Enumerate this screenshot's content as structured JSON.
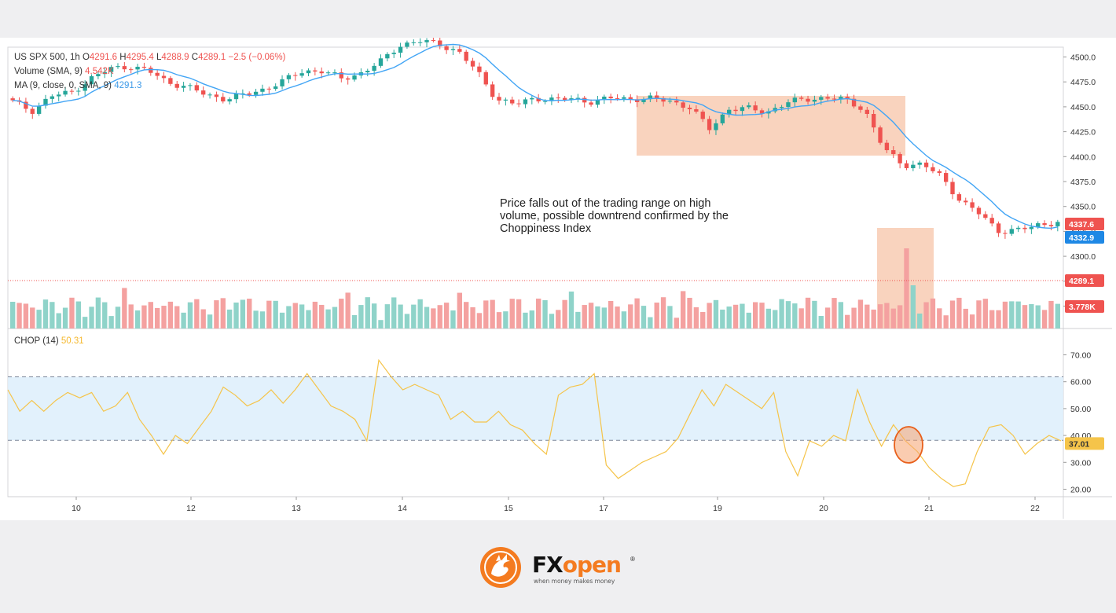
{
  "header": {
    "symbol_line": {
      "symbol": "US SPX 500, 1h",
      "o_label": "O",
      "o": "4291.6",
      "h_label": "H",
      "h": "4295.4",
      "l_label": "L",
      "l": "4288.9",
      "c_label": "C",
      "c": "4289.1",
      "chg": "−2.5 (−0.06%)"
    },
    "volume_line": {
      "label": "Volume (SMA, 9)",
      "value": "4.542K"
    },
    "ma_line": {
      "label": "MA (9, close, 0, SMA, 9)",
      "value": "4291.3"
    },
    "chop_line": {
      "label": "CHOP (14)",
      "value": "50.31"
    }
  },
  "annotation": "Price falls out of the trading range on high volume, possible downtrend confirmed by the Choppiness Index",
  "colors": {
    "up": "#26a69a",
    "down": "#ef5350",
    "ma": "#42a5f5",
    "chop": "#f5c44a",
    "highlight": "#f7c4a8",
    "band": "#ddeefb",
    "accent": "#f47b20"
  },
  "chart_data": [
    {
      "type": "candlestick",
      "title": "US SPX 500, 1h",
      "x_ticks": [
        "10",
        "12",
        "13",
        "14",
        "15",
        "17",
        "19",
        "20",
        "21",
        "22"
      ],
      "y_ticks": [
        "4250.0",
        "4275.0",
        "4300.0",
        "4325.0",
        "4350.0",
        "4375.0",
        "4400.0",
        "4425.0",
        "4450.0",
        "4475.0",
        "4500.0"
      ],
      "ylim": [
        4240,
        4520
      ],
      "key_closes": [
        4455,
        4446,
        4461,
        4464,
        4478,
        4488,
        4491,
        4486,
        4475,
        4470,
        4462,
        4458,
        4462,
        4468,
        4476,
        4486,
        4486,
        4478,
        4484,
        4495,
        4512,
        4516,
        4513,
        4506,
        4485,
        4458,
        4452,
        4459,
        4457,
        4458,
        4455,
        4459,
        4458,
        4458,
        4456,
        4449,
        4428,
        4448,
        4448,
        4445,
        4454,
        4458,
        4459,
        4457,
        4448,
        4408,
        4392,
        4392,
        4380,
        4355,
        4342,
        4325,
        4326,
        4332,
        4334
      ],
      "price_labels": [
        "4337.6",
        "4332.9",
        "4289.1"
      ],
      "volume_label": "3.778K",
      "volume_sma_label": "Volume (SMA, 9)",
      "ma_label": "MA (9, close, 0, SMA, 9)"
    },
    {
      "type": "line",
      "title": "CHOP (14)",
      "y_ticks": [
        "20.00",
        "30.00",
        "40.00",
        "50.00",
        "60.00",
        "70.00"
      ],
      "ylim": [
        15,
        75
      ],
      "band": [
        38.2,
        61.8
      ],
      "values": [
        57,
        49,
        53,
        49,
        53,
        56,
        54,
        56,
        49,
        51,
        56,
        46,
        40,
        33,
        40,
        37,
        43,
        49,
        58,
        55,
        51,
        53,
        57,
        52,
        57,
        63,
        57,
        51,
        49,
        46,
        38,
        68,
        62,
        57,
        59,
        57,
        55,
        46,
        49,
        45,
        45,
        49,
        44,
        42,
        37,
        33,
        55,
        58,
        59,
        63,
        29,
        24,
        27,
        30,
        32,
        34,
        39,
        48,
        57,
        51,
        59,
        56,
        53,
        50,
        56,
        34,
        25,
        38,
        36,
        40,
        38,
        57,
        45,
        36,
        44,
        38,
        34,
        28,
        24,
        21,
        22,
        34,
        43,
        44,
        40,
        33,
        37,
        40,
        38
      ],
      "current_label": "37.01",
      "current": 37.01
    }
  ],
  "logo": {
    "brand_fx": "FX",
    "brand_open": "open",
    "registered": "®",
    "tagline": "when money makes money"
  }
}
